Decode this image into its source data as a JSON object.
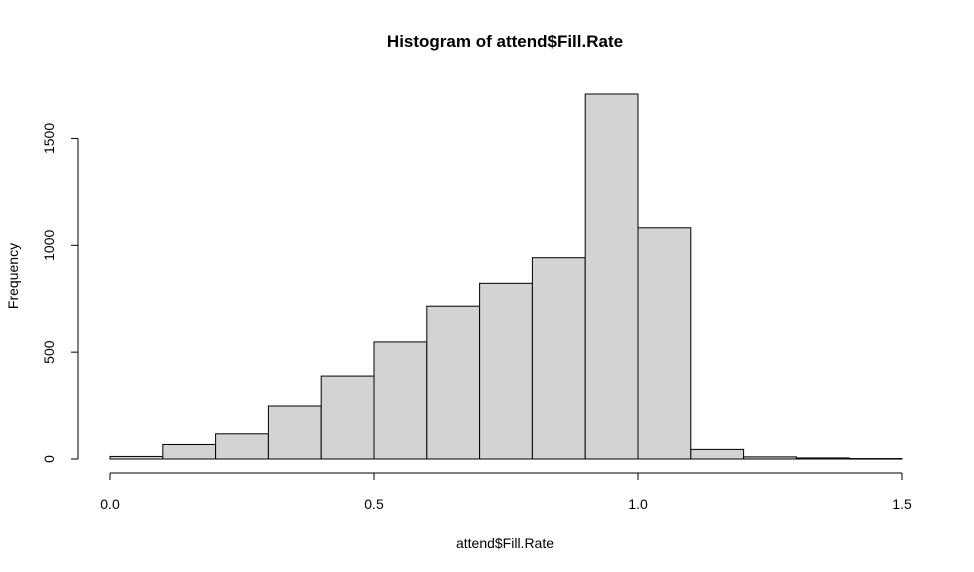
{
  "chart_data": {
    "type": "bar",
    "title": "Histogram of attend$Fill.Rate",
    "xlabel": "attend$Fill.Rate",
    "ylabel": "Frequency",
    "bin_edges": [
      0.0,
      0.1,
      0.2,
      0.3,
      0.4,
      0.5,
      0.6,
      0.7,
      0.8,
      0.9,
      1.0,
      1.1,
      1.2,
      1.3,
      1.4,
      1.5
    ],
    "values": [
      12,
      68,
      118,
      248,
      388,
      548,
      715,
      822,
      942,
      1708,
      1082,
      45,
      10,
      5,
      2
    ],
    "xlim": [
      0,
      1.5
    ],
    "ylim": [
      0,
      1708
    ],
    "x_ticks": [
      "0.0",
      "0.5",
      "1.0",
      "1.5"
    ],
    "y_ticks": [
      "0",
      "500",
      "1000",
      "1500"
    ],
    "bar_color": "#d3d3d3",
    "grid": false,
    "legend": "none"
  }
}
